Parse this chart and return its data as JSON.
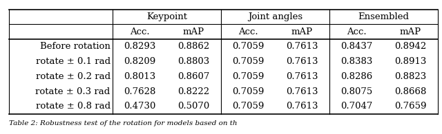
{
  "col_headers_top": [
    "Keypoint",
    "Joint angles",
    "Ensembled"
  ],
  "col_headers_sub": [
    "Acc.",
    "mAP",
    "Acc.",
    "mAP",
    "Acc.",
    "mAP"
  ],
  "row_labels": [
    "Before rotation",
    "rotate ± 0.1 rad",
    "rotate ± 0.2 rad",
    "rotate ± 0.3 rad",
    "rotate ± 0.8 rad"
  ],
  "data": [
    [
      "0.8293",
      "0.8862",
      "0.7059",
      "0.7613",
      "0.8437",
      "0.8942"
    ],
    [
      "0.8209",
      "0.8803",
      "0.7059",
      "0.7613",
      "0.8383",
      "0.8913"
    ],
    [
      "0.8013",
      "0.8607",
      "0.7059",
      "0.7613",
      "0.8286",
      "0.8823"
    ],
    [
      "0.7628",
      "0.8222",
      "0.7059",
      "0.7613",
      "0.8075",
      "0.8668"
    ],
    [
      "0.4730",
      "0.5070",
      "0.7059",
      "0.7613",
      "0.7047",
      "0.7659"
    ]
  ],
  "caption": "Table 2: Robustness test of the rotation for models based on th",
  "bg_color": "#ffffff",
  "text_color": "#000000",
  "font_size": 9.5,
  "header_font_size": 9.5
}
